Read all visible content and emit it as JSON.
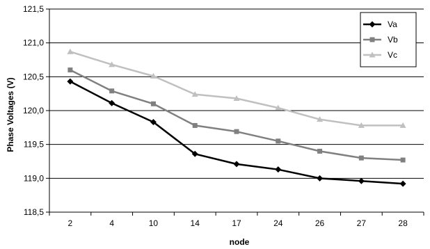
{
  "chart_data": {
    "type": "line",
    "title": "",
    "xlabel": "node",
    "ylabel": "Phase Voltages (V)",
    "categories": [
      "2",
      "4",
      "10",
      "14",
      "17",
      "24",
      "26",
      "27",
      "28"
    ],
    "ylim": [
      118.5,
      121.5
    ],
    "ytick_step": 0.5,
    "ytick_labels": [
      "118,5",
      "119,0",
      "119,5",
      "120,0",
      "120,5",
      "121,0",
      "121,5"
    ],
    "grid": true,
    "legend_position": "top-right",
    "series": [
      {
        "name": "Va",
        "color": "#000000",
        "marker": "diamond",
        "values": [
          120.43,
          120.11,
          119.83,
          119.36,
          119.21,
          119.13,
          119.0,
          118.96,
          118.92
        ]
      },
      {
        "name": "Vb",
        "color": "#808080",
        "marker": "square",
        "values": [
          120.6,
          120.29,
          120.1,
          119.78,
          119.69,
          119.55,
          119.4,
          119.3,
          119.27
        ]
      },
      {
        "name": "Vc",
        "color": "#c0c0c0",
        "marker": "triangle",
        "values": [
          120.87,
          120.68,
          120.51,
          120.24,
          120.18,
          120.04,
          119.87,
          119.78,
          119.78
        ]
      }
    ]
  }
}
